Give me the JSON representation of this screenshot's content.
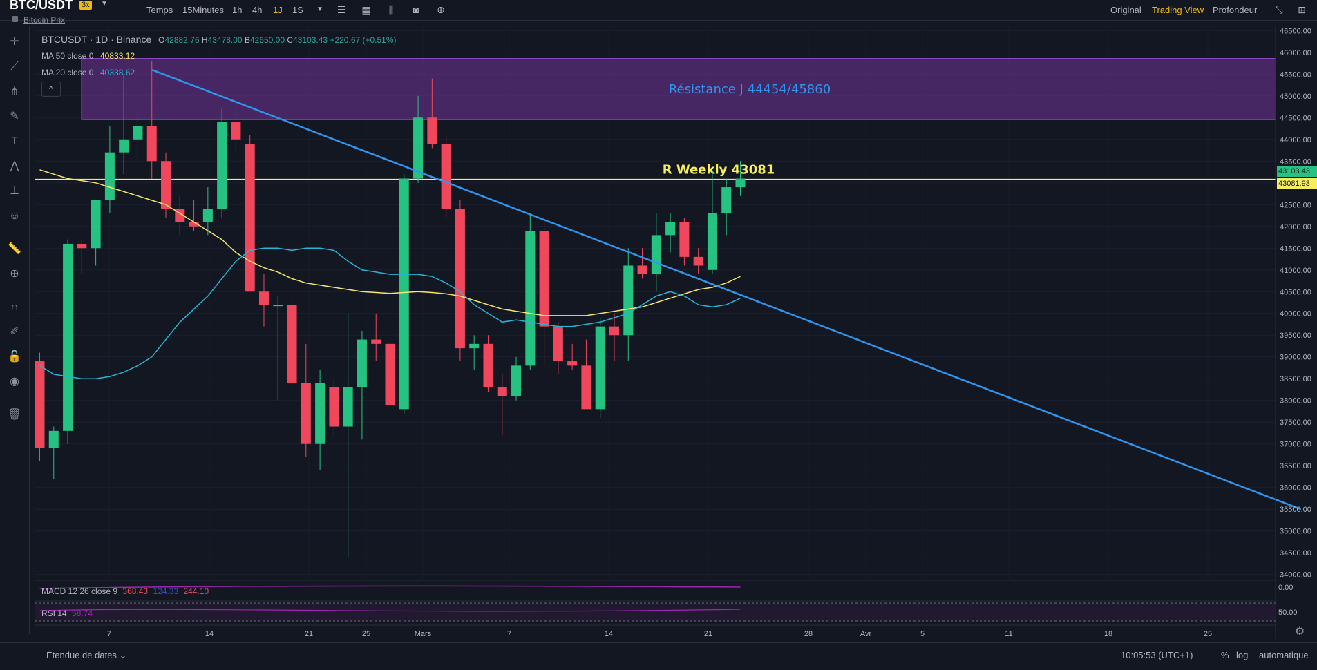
{
  "header": {
    "pair": "BTC/USDT",
    "leverage": "3x",
    "subtitle": "Bitcoin Prix",
    "time_label": "Temps",
    "timeframes": [
      "15Minutes",
      "1h",
      "4h",
      "1J",
      "1S"
    ],
    "active_timeframe": "1J",
    "views": [
      "Original",
      "Trading View",
      "Profondeur"
    ],
    "active_view": "Trading View"
  },
  "legend": {
    "symbol_line": "BTCUSDT · 1D · Binance",
    "open_label": "O",
    "open": "42882.76",
    "high_label": "H",
    "high": "43478.00",
    "low_label": "B",
    "low": "42650.00",
    "close_label": "C",
    "close": "43103.43",
    "change": "+220.67 (+0.51%)",
    "ma50_label": "MA 50 close 0",
    "ma50_value": "40833.12",
    "ma20_label": "MA 20 close 0",
    "ma20_value": "40338.62",
    "collapse": "^"
  },
  "colors": {
    "up": "#26c281",
    "down": "#f0475c",
    "ma50": "#f5e56b",
    "ma20": "#26b5d3",
    "trendline": "#2f96f0",
    "zone_fill": "#5a2d7a",
    "zone_border": "#9c4fd6",
    "level_line": "#f7ee5f",
    "resistance_text": "#2f96f0",
    "weekly_text": "#f7ee5f"
  },
  "chart_data": {
    "type": "candlestick",
    "ylim": [
      33900,
      46600
    ],
    "y_ticks": [
      "46500.00",
      "46000.00",
      "45500.00",
      "45000.00",
      "44500.00",
      "44000.00",
      "43500.00",
      "43000.00",
      "42500.00",
      "42000.00",
      "41500.00",
      "41000.00",
      "40500.00",
      "40000.00",
      "39500.00",
      "39000.00",
      "38500.00",
      "38000.00",
      "37500.00",
      "37000.00",
      "36500.00",
      "36000.00",
      "35500.00",
      "35000.00",
      "34500.00",
      "34000.00"
    ],
    "x_ticks": [
      "7",
      "14",
      "21",
      "25",
      "Mars",
      "7",
      "14",
      "21",
      "28",
      "Avr",
      "5",
      "11",
      "18",
      "25"
    ],
    "candles": [
      {
        "o": 38900,
        "h": 39100,
        "l": 36600,
        "c": 36900
      },
      {
        "o": 36900,
        "h": 37400,
        "l": 36200,
        "c": 37300
      },
      {
        "o": 37300,
        "h": 41700,
        "l": 37000,
        "c": 41600
      },
      {
        "o": 41600,
        "h": 41700,
        "l": 40900,
        "c": 41500
      },
      {
        "o": 41500,
        "h": 42600,
        "l": 41100,
        "c": 42600
      },
      {
        "o": 42600,
        "h": 44300,
        "l": 42300,
        "c": 43700
      },
      {
        "o": 43700,
        "h": 45500,
        "l": 43200,
        "c": 44000
      },
      {
        "o": 44000,
        "h": 44700,
        "l": 43500,
        "c": 44300
      },
      {
        "o": 44300,
        "h": 45800,
        "l": 43100,
        "c": 43500
      },
      {
        "o": 43500,
        "h": 43700,
        "l": 42200,
        "c": 42400
      },
      {
        "o": 42400,
        "h": 42700,
        "l": 41800,
        "c": 42100
      },
      {
        "o": 42100,
        "h": 42600,
        "l": 41900,
        "c": 42000
      },
      {
        "o": 42100,
        "h": 42900,
        "l": 41800,
        "c": 42400
      },
      {
        "o": 42400,
        "h": 44700,
        "l": 42200,
        "c": 44400
      },
      {
        "o": 44400,
        "h": 44700,
        "l": 43700,
        "c": 44000
      },
      {
        "o": 43900,
        "h": 44100,
        "l": 40500,
        "c": 40500
      },
      {
        "o": 40500,
        "h": 40900,
        "l": 39700,
        "c": 40200
      },
      {
        "o": 40200,
        "h": 40400,
        "l": 38000,
        "c": 40200
      },
      {
        "o": 40200,
        "h": 40400,
        "l": 38200,
        "c": 38400
      },
      {
        "o": 38400,
        "h": 39300,
        "l": 36700,
        "c": 37000
      },
      {
        "o": 37000,
        "h": 38700,
        "l": 36400,
        "c": 38400
      },
      {
        "o": 38300,
        "h": 38500,
        "l": 37200,
        "c": 37400
      },
      {
        "o": 37400,
        "h": 40000,
        "l": 34400,
        "c": 38300
      },
      {
        "o": 38300,
        "h": 39600,
        "l": 37100,
        "c": 39400
      },
      {
        "o": 39400,
        "h": 40000,
        "l": 38900,
        "c": 39300
      },
      {
        "o": 39300,
        "h": 39600,
        "l": 37000,
        "c": 37900
      },
      {
        "o": 37800,
        "h": 43200,
        "l": 37700,
        "c": 43100
      },
      {
        "o": 43100,
        "h": 45000,
        "l": 43000,
        "c": 44500
      },
      {
        "o": 44500,
        "h": 45400,
        "l": 43800,
        "c": 43900
      },
      {
        "o": 43900,
        "h": 44100,
        "l": 42200,
        "c": 42400
      },
      {
        "o": 42400,
        "h": 42600,
        "l": 38900,
        "c": 39200
      },
      {
        "o": 39200,
        "h": 39500,
        "l": 38700,
        "c": 39300
      },
      {
        "o": 39300,
        "h": 39500,
        "l": 38200,
        "c": 38300
      },
      {
        "o": 38300,
        "h": 38600,
        "l": 37200,
        "c": 38100
      },
      {
        "o": 38100,
        "h": 39000,
        "l": 38000,
        "c": 38800
      },
      {
        "o": 38800,
        "h": 42300,
        "l": 38700,
        "c": 41900
      },
      {
        "o": 41900,
        "h": 42100,
        "l": 38800,
        "c": 39700
      },
      {
        "o": 39700,
        "h": 39800,
        "l": 38600,
        "c": 38900
      },
      {
        "o": 38900,
        "h": 39300,
        "l": 38700,
        "c": 38800
      },
      {
        "o": 38800,
        "h": 39400,
        "l": 37900,
        "c": 37800
      },
      {
        "o": 37800,
        "h": 39900,
        "l": 37600,
        "c": 39700
      },
      {
        "o": 39700,
        "h": 40000,
        "l": 38900,
        "c": 39500
      },
      {
        "o": 39500,
        "h": 41500,
        "l": 38900,
        "c": 41100
      },
      {
        "o": 41100,
        "h": 41500,
        "l": 40800,
        "c": 40900
      },
      {
        "o": 40900,
        "h": 42300,
        "l": 40500,
        "c": 41800
      },
      {
        "o": 41800,
        "h": 42300,
        "l": 41400,
        "c": 42100
      },
      {
        "o": 42100,
        "h": 42200,
        "l": 41100,
        "c": 41300
      },
      {
        "o": 41300,
        "h": 41500,
        "l": 40900,
        "c": 41100
      },
      {
        "o": 41000,
        "h": 43300,
        "l": 40900,
        "c": 42300
      },
      {
        "o": 42300,
        "h": 43100,
        "l": 41800,
        "c": 42900
      },
      {
        "o": 42900,
        "h": 43500,
        "l": 42700,
        "c": 43100
      }
    ],
    "ma50": [
      43300,
      43200,
      43100,
      43050,
      43000,
      42900,
      42800,
      42700,
      42600,
      42500,
      42300,
      42100,
      41900,
      41700,
      41400,
      41200,
      41050,
      40950,
      40800,
      40700,
      40650,
      40600,
      40550,
      40500,
      40480,
      40460,
      40480,
      40500,
      40480,
      40450,
      40400,
      40300,
      40200,
      40100,
      40050,
      40000,
      39950,
      39950,
      39950,
      39950,
      40000,
      40050,
      40100,
      40150,
      40250,
      40350,
      40450,
      40550,
      40600,
      40700,
      40850
    ],
    "ma20": [
      38800,
      38600,
      38550,
      38500,
      38500,
      38550,
      38650,
      38800,
      39000,
      39400,
      39800,
      40100,
      40400,
      40800,
      41200,
      41450,
      41500,
      41500,
      41450,
      41500,
      41500,
      41450,
      41200,
      41000,
      40950,
      40900,
      40900,
      40900,
      40850,
      40700,
      40500,
      40200,
      40000,
      39800,
      39850,
      39800,
      39750,
      39700,
      39700,
      39750,
      39800,
      39900,
      40000,
      40200,
      40400,
      40500,
      40400,
      40200,
      40150,
      40200,
      40350
    ],
    "trendline": {
      "from": {
        "index": 8,
        "price": 45600
      },
      "to": {
        "index": 90,
        "price": 35500
      }
    },
    "resistance_zone": {
      "label": "Résistance J  44454/45860",
      "low": 44454,
      "high": 45860
    },
    "weekly_level": {
      "label": "R Weekly 43081",
      "price": 43081
    },
    "last_price_label": "43103.43",
    "weekly_price_label": "43081.93"
  },
  "indicators": {
    "macd_label": "MACD 12 26 close 9",
    "macd_v1": "368.43",
    "macd_v2": "124.33",
    "macd_v3": "244.10",
    "macd_axis": "0.00",
    "rsi_label": "RSI 14",
    "rsi_value": "58.74",
    "rsi_axis": "50.00"
  },
  "footer": {
    "date_range": "Étendue de dates",
    "clock": "10:05:53 (UTC+1)",
    "percent": "%",
    "log": "log",
    "auto": "automatique"
  }
}
